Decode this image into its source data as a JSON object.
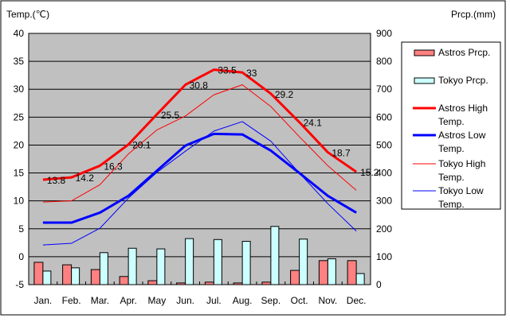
{
  "chart_data": {
    "type": "bar+line",
    "categories": [
      "Jan.",
      "Feb.",
      "Mar.",
      "Apr.",
      "May",
      "Jun.",
      "Jul.",
      "Aug.",
      "Sep.",
      "Oct.",
      "Nov.",
      "Dec."
    ],
    "left_axis": {
      "label": "Temp.(℃)",
      "range": [
        -5,
        40
      ],
      "ticks": [
        -5,
        0,
        5,
        10,
        15,
        20,
        25,
        30,
        35,
        40
      ]
    },
    "right_axis": {
      "label": "Prcp.(mm)",
      "range": [
        0,
        900
      ],
      "ticks": [
        0,
        100,
        200,
        300,
        400,
        500,
        600,
        700,
        800,
        900
      ]
    },
    "grid": true,
    "legend_position": "right",
    "bars": [
      {
        "name": "Astros Prcp.",
        "color": "#ff8080",
        "values": [
          80,
          71,
          54,
          29,
          14,
          6,
          9,
          6,
          9,
          51,
          86,
          86
        ]
      },
      {
        "name": "Tokyo Prcp.",
        "color": "#ccffff",
        "values": [
          48.6,
          60.2,
          114.5,
          130.3,
          128.0,
          164.9,
          161.5,
          155.1,
          208.5,
          163.1,
          92.5,
          39.6
        ]
      }
    ],
    "lines": [
      {
        "name": "Astros High Temp.",
        "color": "#ff0000",
        "width": 3,
        "labels": true,
        "values": [
          13.8,
          14.2,
          16.3,
          20.1,
          25.5,
          30.8,
          33.5,
          33,
          29.2,
          24.1,
          18.7,
          15.2
        ]
      },
      {
        "name": "Astros Low Temp.",
        "color": "#0000ff",
        "width": 3,
        "values": [
          6.1,
          6.1,
          7.9,
          10.9,
          15.4,
          19.9,
          22.0,
          21.9,
          19.0,
          15.0,
          10.9,
          7.9
        ]
      },
      {
        "name": "Tokyo High Temp.",
        "color": "#ff0000",
        "width": 1,
        "values": [
          9.8,
          10.0,
          12.9,
          18.4,
          22.7,
          25.2,
          29.0,
          30.8,
          26.9,
          21.5,
          16.3,
          11.9
        ]
      },
      {
        "name": "Tokyo Low Temp.",
        "color": "#0000ff",
        "width": 1,
        "values": [
          2.1,
          2.4,
          5.1,
          10.5,
          15.1,
          18.9,
          22.5,
          24.2,
          20.7,
          15.0,
          9.5,
          4.6
        ]
      }
    ]
  }
}
